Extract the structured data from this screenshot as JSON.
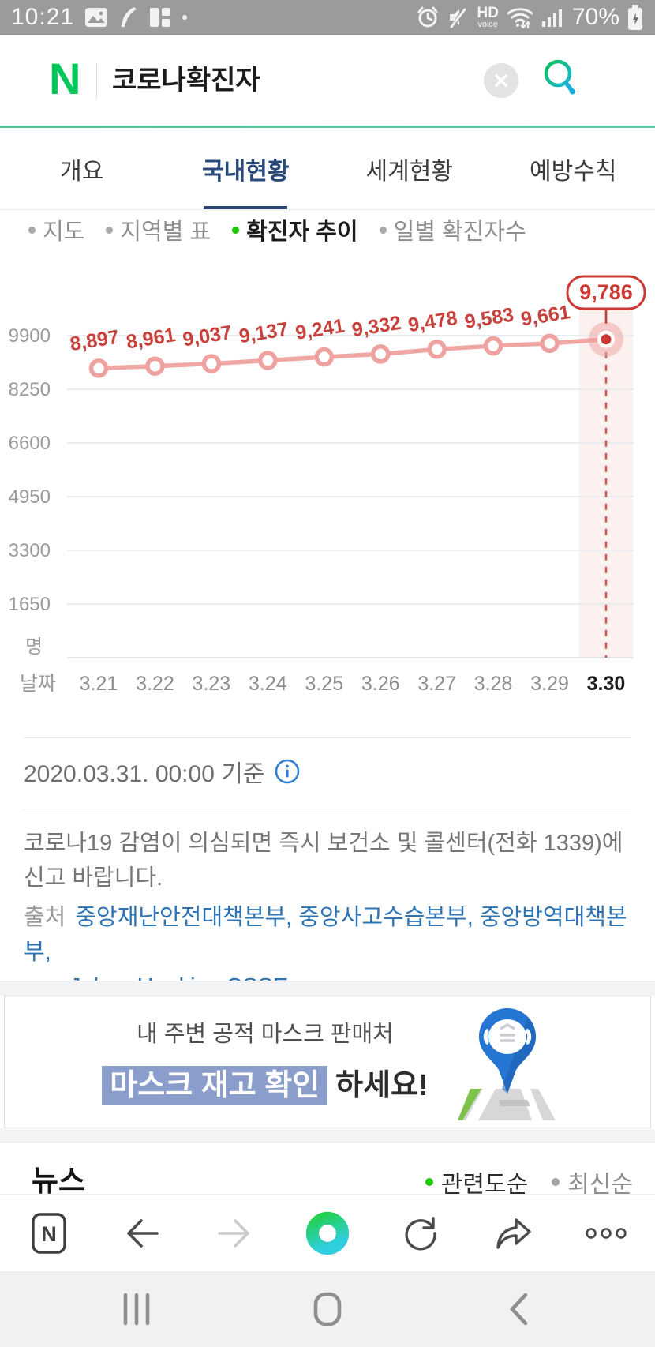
{
  "status_bar": {
    "time": "10:21",
    "hd_label": "HD",
    "voice_label": "voice",
    "battery_percent": "70%",
    "left_icons": [
      "image-icon",
      "pen-icon",
      "grid-icon",
      "notification-dot"
    ],
    "right_icons": [
      "alarm-icon",
      "mute-icon",
      "hd-voice",
      "wifi-icon",
      "signal-icon",
      "battery-icon"
    ]
  },
  "search_header": {
    "logo": "N",
    "query": "코로나확진자",
    "clear_icon": "close-icon",
    "search_icon": "search-icon"
  },
  "tabs": [
    {
      "label": "개요",
      "selected": false
    },
    {
      "label": "국내현황",
      "selected": true
    },
    {
      "label": "세계현황",
      "selected": false
    },
    {
      "label": "예방수칙",
      "selected": false
    }
  ],
  "filters": [
    {
      "label": "지도",
      "selected": false
    },
    {
      "label": "지역별 표",
      "selected": false
    },
    {
      "label": "확진자 추이",
      "selected": true
    },
    {
      "label": "일별 확진자수",
      "selected": false
    }
  ],
  "chart_data": {
    "type": "line",
    "title": "확진자 추이",
    "unit_label": "명",
    "xaxis_label": "날짜",
    "categories": [
      "3.21",
      "3.22",
      "3.23",
      "3.24",
      "3.25",
      "3.26",
      "3.27",
      "3.28",
      "3.29",
      "3.30"
    ],
    "values": [
      8897,
      8961,
      9037,
      9137,
      9241,
      9332,
      9478,
      9583,
      9661,
      9786
    ],
    "value_labels": [
      "8,897",
      "8,961",
      "9,037",
      "9,137",
      "9,241",
      "9,332",
      "9,478",
      "9,583",
      "9,661",
      "9,786"
    ],
    "y_ticks": [
      9900,
      8250,
      6600,
      4950,
      3300,
      1650
    ],
    "ylim": [
      0,
      9900
    ],
    "grid": true,
    "highlight_index": 9,
    "callout": "9,786",
    "line_color": "#f0a7a4",
    "marker_color": "#eea29f",
    "label_color": "#c8423d",
    "highlight_color": "#cd3a35",
    "band_color": "rgba(242,166,163,0.16)",
    "grid_color": "#e9ecef",
    "axis_text_color": "#9a9a9a",
    "x_highlight_text_color": "#1e1e1e"
  },
  "reference": {
    "text": "2020.03.31. 00:00 기준",
    "info_icon": "info-icon"
  },
  "notice": {
    "text": "코로나19 감염이 의심되면 즉시 보건소 및 콜센터(전화 1339)에 신고 바랍니다."
  },
  "source": {
    "label": "출처",
    "links": [
      "중앙재난안전대책본부,",
      "중앙사고수습본부,",
      "중앙방역대책본부,",
      "Johns Hopkins CSSE"
    ]
  },
  "banner": {
    "line1": "내 주변 공적 마스크 판매처",
    "highlight": "마스크 재고 확인",
    "line2_rest": "하세요!",
    "icon": "mask-map-pin-icon"
  },
  "news": {
    "title": "뉴스",
    "sort_options": [
      {
        "label": "관련도순",
        "selected": true
      },
      {
        "label": "최신순",
        "selected": false
      }
    ]
  },
  "toolbar": {
    "icons": [
      "naver-home-icon",
      "back-icon",
      "forward-icon",
      "naver-green-dot-icon",
      "refresh-icon",
      "share-icon",
      "more-icon"
    ]
  },
  "android_nav": {
    "icons": [
      "recent-apps-icon",
      "home-icon",
      "back-icon"
    ]
  },
  "colors": {
    "naver_green": "#03c75a",
    "tab_navy": "#29497b",
    "link_blue": "#2e74b5",
    "filter_green": "#1ec800",
    "banner_highlight": "#8b9dca"
  }
}
